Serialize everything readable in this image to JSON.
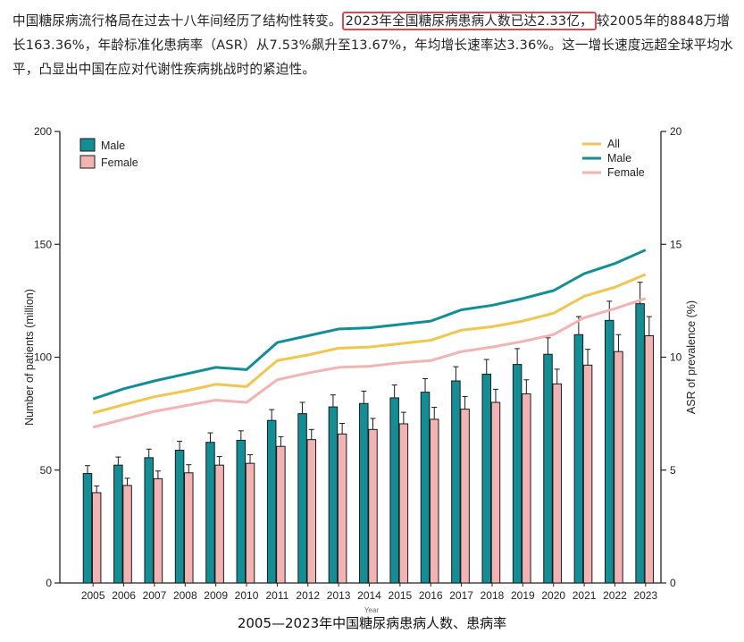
{
  "intro": {
    "part1": "中国糖尿病流行格局在过去十八年间经历了结构性转变。",
    "highlight": "2023年全国糖尿病患病人数已达2.33亿，",
    "part2": "较2005年的8848万增长163.36%，年龄标准化患病率（ASR）从7.53%飙升至13.67%，年均增长速率达3.36%。这一增长速度远超全球平均水平，凸显出中国在应对代谢性疾病挑战时的紧迫性。",
    "highlight_color": "#e0464c"
  },
  "caption": "2005—2023年中国糖尿病患病人数、患病率",
  "chart_data": {
    "type": "bar+line",
    "categories": [
      "2005",
      "2006",
      "2007",
      "2008",
      "2009",
      "2010",
      "2011",
      "2012",
      "2013",
      "2014",
      "2015",
      "2016",
      "2017",
      "2018",
      "2019",
      "2020",
      "2021",
      "2022",
      "2023"
    ],
    "bar_series": [
      {
        "name": "Male",
        "color": "#128e97",
        "values": [
          48.5,
          52.2,
          55.5,
          58.8,
          62.3,
          63.2,
          72.0,
          75.0,
          78.0,
          79.5,
          82.0,
          84.5,
          89.5,
          92.5,
          96.8,
          101.3,
          110.0,
          116.3,
          123.7
        ],
        "errors": [
          3.5,
          3.6,
          3.8,
          4.0,
          4.2,
          4.2,
          4.8,
          5.0,
          5.3,
          5.5,
          5.7,
          6.0,
          6.3,
          6.5,
          7.0,
          7.3,
          8.0,
          8.5,
          9.5
        ]
      },
      {
        "name": "Female",
        "color": "#f4b3b3",
        "values": [
          40.0,
          43.2,
          46.2,
          48.8,
          52.2,
          53.0,
          60.5,
          63.5,
          66.0,
          68.0,
          70.5,
          72.5,
          77.0,
          80.0,
          83.8,
          88.2,
          96.5,
          102.5,
          109.5
        ],
        "errors": [
          3.0,
          3.2,
          3.4,
          3.6,
          3.8,
          3.8,
          4.3,
          4.5,
          4.7,
          4.9,
          5.1,
          5.3,
          5.6,
          5.8,
          6.2,
          6.5,
          7.0,
          7.5,
          8.5
        ]
      }
    ],
    "line_series": [
      {
        "name": "All",
        "color": "#f0c64c",
        "values": [
          7.53,
          7.9,
          8.25,
          8.5,
          8.8,
          8.7,
          9.85,
          10.1,
          10.4,
          10.45,
          10.6,
          10.75,
          11.2,
          11.35,
          11.6,
          11.95,
          12.7,
          13.1,
          13.67
        ]
      },
      {
        "name": "Male",
        "color": "#128e97",
        "values": [
          8.15,
          8.6,
          8.95,
          9.25,
          9.55,
          9.45,
          10.65,
          10.95,
          11.25,
          11.3,
          11.45,
          11.6,
          12.1,
          12.3,
          12.6,
          12.95,
          13.7,
          14.15,
          14.75
        ]
      },
      {
        "name": "Female",
        "color": "#f4b3b3",
        "values": [
          6.9,
          7.25,
          7.6,
          7.85,
          8.1,
          8.0,
          9.0,
          9.3,
          9.55,
          9.6,
          9.75,
          9.85,
          10.25,
          10.45,
          10.7,
          11.0,
          11.75,
          12.15,
          12.6
        ]
      }
    ],
    "y_left": {
      "label": "Number of patients (million)",
      "range": [
        0,
        200
      ],
      "ticks": [
        0,
        50,
        100,
        150,
        200
      ]
    },
    "y_right": {
      "label": "ASR of prevalence (%)",
      "range": [
        0,
        20
      ],
      "ticks": [
        0,
        5,
        10,
        15,
        20
      ]
    },
    "xlabel": "Year",
    "grid": false,
    "bar_legend_position": "top-left",
    "line_legend_position": "top-right"
  }
}
